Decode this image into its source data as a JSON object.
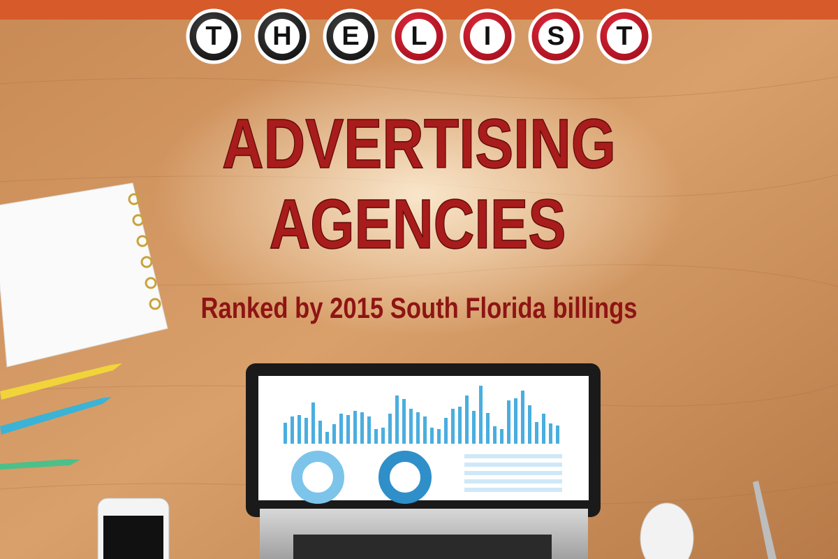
{
  "badge": {
    "letters": [
      "T",
      "H",
      "E",
      "L",
      "I",
      "S",
      "T"
    ]
  },
  "title": {
    "lines": [
      "ADVERTISING",
      "AGENCIES"
    ]
  },
  "subtitle": "Ranked by 2015 South Florida billings"
}
